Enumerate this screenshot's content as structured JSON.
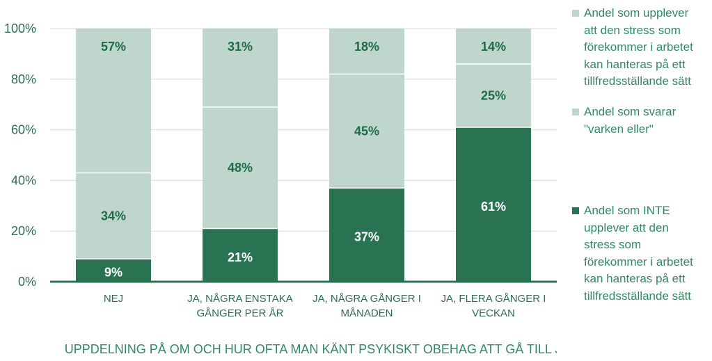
{
  "chart_data": {
    "type": "bar",
    "stacked": true,
    "categories": [
      [
        "NEJ"
      ],
      [
        "JA, NÅGRA ENSTAKA",
        "GÅNGER PER ÅR"
      ],
      [
        "JA, NÅGRA GÅNGER I",
        "MÅNADEN"
      ],
      [
        "JA, FLERA GÅNGER I",
        "VECKAN"
      ]
    ],
    "series": [
      {
        "name": "Andel som INTE upplever att den stress som förekommer i arbetet kan hanteras på ett tillfredsställande sätt",
        "values": [
          9,
          21,
          37,
          61
        ],
        "labels": [
          "9%",
          "21%",
          "37%",
          "61%"
        ],
        "color": "#2a7352",
        "label_color": "#ffffff"
      },
      {
        "name": "Andel som svarar \"varken eller\"",
        "values": [
          34,
          48,
          45,
          25
        ],
        "labels": [
          "34%",
          "48%",
          "45%",
          "25%"
        ],
        "color": "#bfd6cc",
        "label_color": "#1e6b4a"
      },
      {
        "name": "Andel som upplever att den stress som förekommer i arbetet kan hanteras på ett tillfredsställande sätt",
        "values": [
          57,
          31,
          18,
          14
        ],
        "labels": [
          "57%",
          "31%",
          "18%",
          "14%"
        ],
        "color": "#bfd6cc",
        "label_color": "#1e6b4a"
      }
    ],
    "y_ticks": [
      "0%",
      "20%",
      "40%",
      "60%",
      "80%",
      "100%"
    ],
    "ylim": [
      0,
      100
    ],
    "xlabel": "UPPDELNING PÅ OM OCH HUR OFTA MAN KÄNT PSYKISKT OBEHAG ATT GÅ TILL JOBBET",
    "grid": true,
    "legend_position": "right"
  },
  "legend": {
    "items": [
      {
        "lines": [
          "Andel som upplever",
          "att den stress som",
          "förekommer i arbetet",
          "kan hanteras på ett",
          "tillfredsställande sätt"
        ],
        "color": "#bfd6cc"
      },
      {
        "lines": [
          "Andel som svarar",
          "\"varken eller\""
        ],
        "color": "#bfd6cc"
      },
      {
        "lines": [
          "Andel som INTE",
          "upplever att den",
          "stress som",
          "förekommer i arbetet",
          "kan hanteras på ett",
          "tillfredsställande sätt"
        ],
        "color": "#2a7352"
      }
    ]
  }
}
